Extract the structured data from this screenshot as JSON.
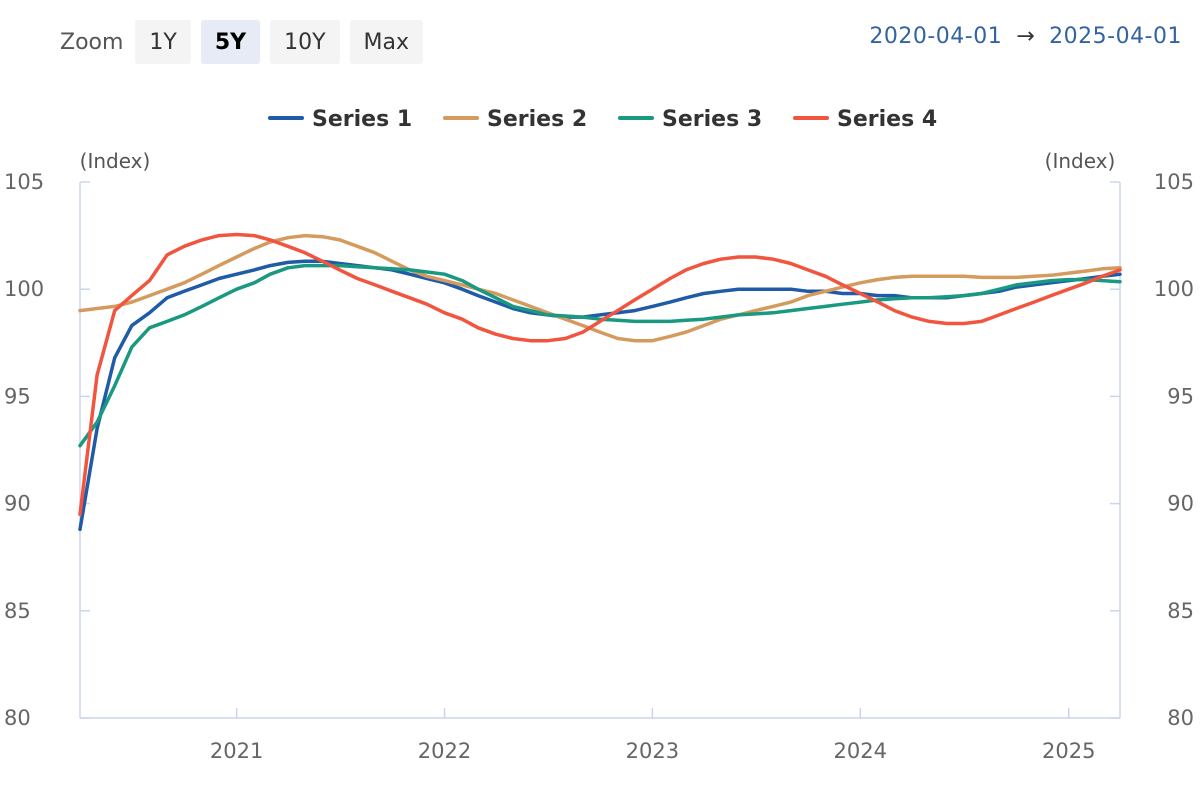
{
  "toolbar": {
    "zoom_label": "Zoom",
    "zoom_options": [
      "1Y",
      "5Y",
      "10Y",
      "Max"
    ],
    "active_zoom": "5Y",
    "range_start": "2020-04-01",
    "range_arrow": "→",
    "range_end": "2025-04-01"
  },
  "colors": {
    "series": [
      "#1f5ba6",
      "#d49a5e",
      "#1a9981",
      "#f2553f"
    ],
    "axis": "#ccd6eb",
    "active_button": "#e6ebf5",
    "range_text": "#3363a3"
  },
  "chart_data": {
    "type": "line",
    "title": "",
    "xlabel": "",
    "ylabel_left": "(Index)",
    "ylabel_right": "(Index)",
    "xlim": [
      "2020-04-01",
      "2025-04-01"
    ],
    "ylim": [
      80,
      105
    ],
    "y_ticks": [
      "80",
      "85",
      "90",
      "95",
      "100",
      "105"
    ],
    "x_ticks": [
      "2021",
      "2022",
      "2023",
      "2024",
      "2025"
    ],
    "grid": false,
    "legend_position": "top-center",
    "x": [
      "2020-04-01",
      "2020-05-01",
      "2020-06-01",
      "2020-07-01",
      "2020-08-01",
      "2020-09-01",
      "2020-10-01",
      "2020-11-01",
      "2020-12-01",
      "2021-01-01",
      "2021-02-01",
      "2021-03-01",
      "2021-04-01",
      "2021-05-01",
      "2021-06-01",
      "2021-07-01",
      "2021-08-01",
      "2021-09-01",
      "2021-10-01",
      "2021-11-01",
      "2021-12-01",
      "2022-01-01",
      "2022-02-01",
      "2022-03-01",
      "2022-04-01",
      "2022-05-01",
      "2022-06-01",
      "2022-07-01",
      "2022-08-01",
      "2022-09-01",
      "2022-10-01",
      "2022-11-01",
      "2022-12-01",
      "2023-01-01",
      "2023-02-01",
      "2023-03-01",
      "2023-04-01",
      "2023-05-01",
      "2023-06-01",
      "2023-07-01",
      "2023-08-01",
      "2023-09-01",
      "2023-10-01",
      "2023-11-01",
      "2023-12-01",
      "2024-01-01",
      "2024-02-01",
      "2024-03-01",
      "2024-04-01",
      "2024-05-01",
      "2024-06-01",
      "2024-07-01",
      "2024-08-01",
      "2024-09-01",
      "2024-10-01",
      "2024-11-01",
      "2024-12-01",
      "2025-01-01",
      "2025-02-01",
      "2025-03-01",
      "2025-04-01"
    ],
    "series": [
      {
        "name": "Series 1",
        "values": [
          88.8,
          93.5,
          96.8,
          98.3,
          98.9,
          99.6,
          99.9,
          100.2,
          100.5,
          100.7,
          100.9,
          101.1,
          101.25,
          101.3,
          101.3,
          101.2,
          101.1,
          101.0,
          100.9,
          100.7,
          100.5,
          100.3,
          100.0,
          99.7,
          99.4,
          99.1,
          98.9,
          98.8,
          98.7,
          98.7,
          98.8,
          98.9,
          99.0,
          99.2,
          99.4,
          99.6,
          99.8,
          99.9,
          100.0,
          100.0,
          100.0,
          100.0,
          99.9,
          99.9,
          99.8,
          99.8,
          99.7,
          99.7,
          99.6,
          99.6,
          99.6,
          99.7,
          99.8,
          99.9,
          100.1,
          100.2,
          100.3,
          100.4,
          100.5,
          100.6,
          100.7
        ]
      },
      {
        "name": "Series 2",
        "values": [
          99.0,
          99.1,
          99.2,
          99.4,
          99.7,
          100.0,
          100.3,
          100.7,
          101.1,
          101.5,
          101.9,
          102.2,
          102.4,
          102.5,
          102.45,
          102.3,
          102.0,
          101.7,
          101.3,
          100.9,
          100.6,
          100.4,
          100.2,
          100.0,
          99.8,
          99.5,
          99.2,
          98.9,
          98.6,
          98.3,
          98.0,
          97.7,
          97.6,
          97.6,
          97.8,
          98.0,
          98.3,
          98.6,
          98.8,
          99.0,
          99.2,
          99.4,
          99.7,
          99.9,
          100.1,
          100.3,
          100.45,
          100.55,
          100.6,
          100.6,
          100.6,
          100.6,
          100.55,
          100.55,
          100.55,
          100.6,
          100.65,
          100.75,
          100.85,
          100.95,
          101.0
        ]
      },
      {
        "name": "Series 3",
        "values": [
          92.7,
          93.8,
          95.5,
          97.3,
          98.2,
          98.5,
          98.8,
          99.2,
          99.6,
          100.0,
          100.3,
          100.7,
          101.0,
          101.1,
          101.1,
          101.1,
          101.05,
          101.0,
          100.95,
          100.9,
          100.8,
          100.7,
          100.4,
          100.0,
          99.6,
          99.2,
          99.0,
          98.8,
          98.75,
          98.7,
          98.6,
          98.55,
          98.5,
          98.5,
          98.5,
          98.55,
          98.6,
          98.7,
          98.8,
          98.85,
          98.9,
          99.0,
          99.1,
          99.2,
          99.3,
          99.4,
          99.5,
          99.55,
          99.6,
          99.6,
          99.65,
          99.7,
          99.8,
          100.0,
          100.2,
          100.3,
          100.4,
          100.45,
          100.45,
          100.4,
          100.35
        ]
      },
      {
        "name": "Series 4",
        "values": [
          89.5,
          96.0,
          99.0,
          99.7,
          100.4,
          101.6,
          102.0,
          102.3,
          102.5,
          102.55,
          102.5,
          102.3,
          102.0,
          101.7,
          101.3,
          100.9,
          100.5,
          100.2,
          99.9,
          99.6,
          99.3,
          98.9,
          98.6,
          98.2,
          97.9,
          97.7,
          97.6,
          97.6,
          97.7,
          98.0,
          98.5,
          99.0,
          99.5,
          100.0,
          100.5,
          100.9,
          101.2,
          101.4,
          101.5,
          101.5,
          101.4,
          101.2,
          100.9,
          100.6,
          100.2,
          99.8,
          99.4,
          99.0,
          98.7,
          98.5,
          98.4,
          98.4,
          98.5,
          98.8,
          99.1,
          99.4,
          99.7,
          100.0,
          100.3,
          100.6,
          100.9
        ]
      }
    ]
  }
}
